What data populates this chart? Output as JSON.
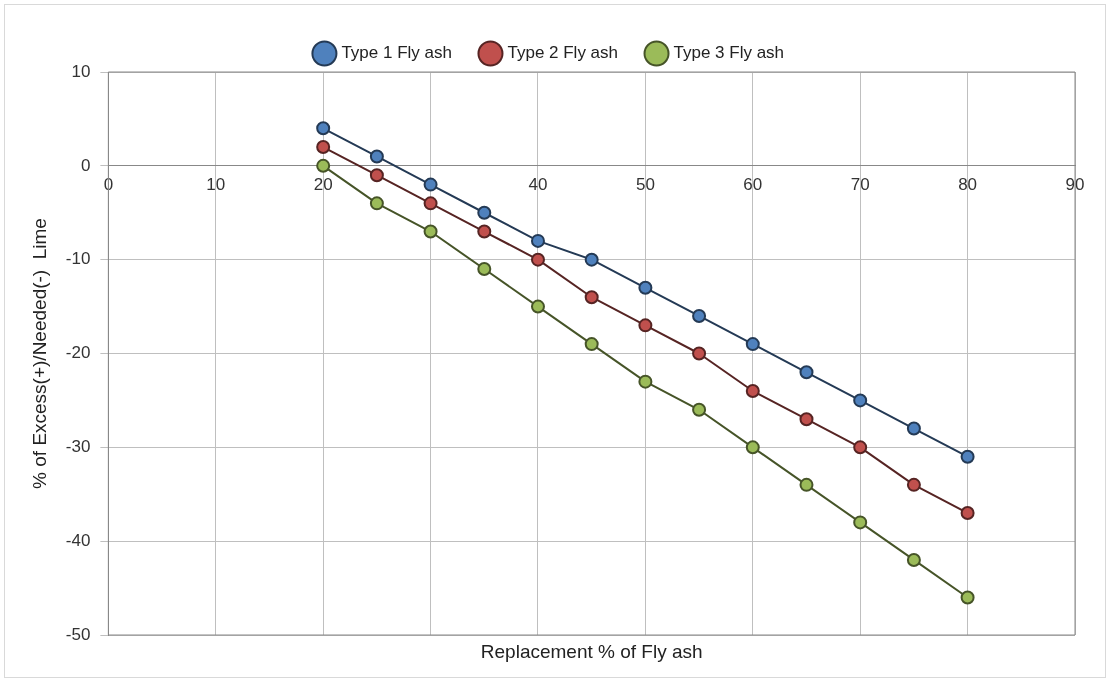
{
  "chart_data": {
    "type": "line",
    "xlabel": "Replacement % of Fly ash",
    "ylabel": "% of Excess(+)/Needed(-)  Lime",
    "x": [
      20,
      25,
      30,
      35,
      40,
      45,
      50,
      55,
      60,
      65,
      70,
      75,
      80
    ],
    "series": [
      {
        "name": "Type 1 Fly ash",
        "color": "#4f81bd",
        "values": [
          4,
          1,
          -2,
          -5,
          -8,
          -10,
          -13,
          -16,
          -19,
          -22,
          -25,
          -28,
          -31
        ]
      },
      {
        "name": "Type 2 Fly ash",
        "color": "#c0504d",
        "values": [
          2,
          -1,
          -4,
          -7,
          -10,
          -14,
          -17,
          -20,
          -24,
          -27,
          -30,
          -34,
          -37
        ]
      },
      {
        "name": "Type 3 Fly ash",
        "color": "#9bbb59",
        "values": [
          0,
          -4,
          -7,
          -11,
          -15,
          -19,
          -23,
          -26,
          -30,
          -34,
          -38,
          -42,
          -46
        ]
      }
    ],
    "xlim": [
      0,
      90
    ],
    "xticks": [
      0,
      10,
      20,
      {
        "value": 30,
        "label": null
      },
      40,
      50,
      60,
      70,
      80,
      90
    ],
    "ylim": [
      -50,
      10
    ],
    "yticks": [
      -50,
      -40,
      -30,
      -20,
      -10,
      0,
      10
    ],
    "grid": true,
    "legend": "top",
    "marker": "circle",
    "line_style": "solid"
  }
}
